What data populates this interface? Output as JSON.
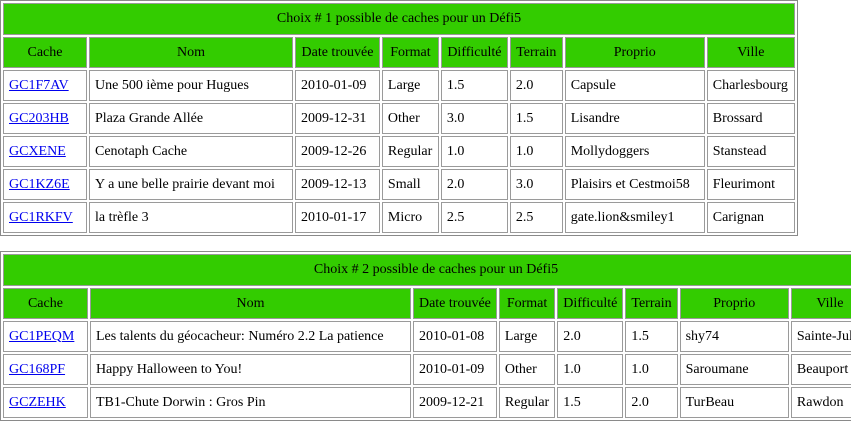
{
  "tables": [
    {
      "title": "Choix # 1 possible de caches pour un Défi5",
      "headers": [
        "Cache",
        "Nom",
        "Date trouvée",
        "Format",
        "Difficulté",
        "Terrain",
        "Proprio",
        "Ville"
      ],
      "rows": [
        [
          "GC1F7AV",
          "Une 500 ième pour Hugues",
          "2010-01-09",
          "Large",
          "1.5",
          "2.0",
          "Capsule",
          "Charlesbourg"
        ],
        [
          "GC203HB",
          "Plaza Grande Allée",
          "2009-12-31",
          "Other",
          "3.0",
          "1.5",
          "Lisandre",
          "Brossard"
        ],
        [
          "GCXENE",
          "Cenotaph Cache",
          "2009-12-26",
          "Regular",
          "1.0",
          "1.0",
          "Mollydoggers",
          "Stanstead"
        ],
        [
          "GC1KZ6E",
          "Y a une belle prairie devant moi",
          "2009-12-13",
          "Small",
          "2.0",
          "3.0",
          "Plaisirs et Cestmoi58",
          "Fleurimont"
        ],
        [
          "GC1RKFV",
          "la trèfle 3",
          "2010-01-17",
          "Micro",
          "2.5",
          "2.5",
          "gate.lion&smiley1",
          "Carignan"
        ]
      ]
    },
    {
      "title": "Choix # 2 possible de caches pour un Défi5",
      "headers": [
        "Cache",
        "Nom",
        "Date trouvée",
        "Format",
        "Difficulté",
        "Terrain",
        "Proprio",
        "Ville"
      ],
      "rows": [
        [
          "GC1PEQM",
          "Les talents du géocacheur: Numéro 2.2 La patience",
          "2010-01-08",
          "Large",
          "2.0",
          "1.5",
          "shy74",
          "Sainte-Julie"
        ],
        [
          "GC168PF",
          "Happy Halloween to You!",
          "2010-01-09",
          "Other",
          "1.0",
          "1.0",
          "Saroumane",
          "Beauport"
        ],
        [
          "GCZEHK",
          "TB1-Chute Dorwin : Gros Pin",
          "2009-12-21",
          "Regular",
          "1.5",
          "2.0",
          "TurBeau",
          "Rawdon"
        ]
      ]
    }
  ]
}
